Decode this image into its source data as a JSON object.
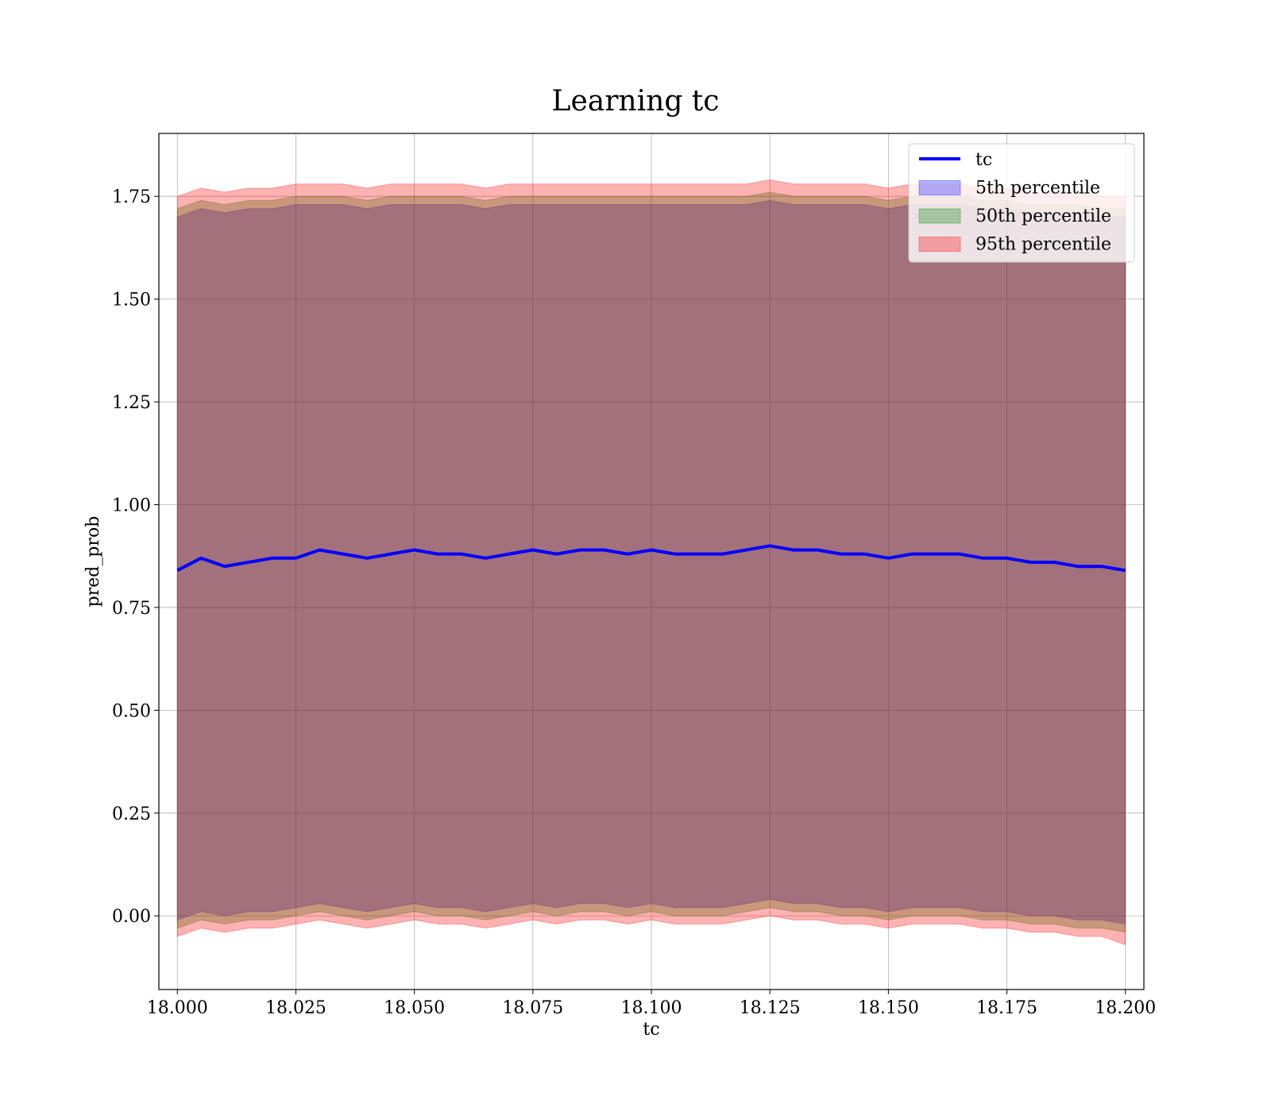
{
  "chart_data": {
    "type": "line",
    "title": "Learning tc",
    "xlabel": "tc",
    "ylabel": "pred_prob",
    "xlim": [
      17.9961,
      18.2039
    ],
    "ylim": [
      -0.1792,
      1.903
    ],
    "xticks": [
      18.0,
      18.025,
      18.05,
      18.075,
      18.1,
      18.125,
      18.15,
      18.175,
      18.2
    ],
    "xtick_labels": [
      "18.000",
      "18.025",
      "18.050",
      "18.075",
      "18.100",
      "18.125",
      "18.150",
      "18.175",
      "18.200"
    ],
    "yticks": [
      0.0,
      0.25,
      0.5,
      0.75,
      1.0,
      1.25,
      1.5,
      1.75
    ],
    "ytick_labels": [
      "0.00",
      "0.25",
      "0.50",
      "0.75",
      "1.00",
      "1.25",
      "1.50",
      "1.75"
    ],
    "grid": true,
    "legend_position": "top-right",
    "x": [
      18.0,
      18.005,
      18.01,
      18.015,
      18.02,
      18.025,
      18.03,
      18.035,
      18.04,
      18.045,
      18.05,
      18.055,
      18.06,
      18.065,
      18.07,
      18.075,
      18.08,
      18.085,
      18.09,
      18.095,
      18.1,
      18.105,
      18.11,
      18.115,
      18.12,
      18.125,
      18.13,
      18.135,
      18.14,
      18.145,
      18.15,
      18.155,
      18.16,
      18.165,
      18.17,
      18.175,
      18.18,
      18.185,
      18.19,
      18.195,
      18.2
    ],
    "series": [
      {
        "name": "tc",
        "kind": "line",
        "color": "#0000ff",
        "values": [
          0.84,
          0.87,
          0.85,
          0.86,
          0.87,
          0.87,
          0.89,
          0.88,
          0.87,
          0.88,
          0.89,
          0.88,
          0.88,
          0.87,
          0.88,
          0.89,
          0.88,
          0.89,
          0.89,
          0.88,
          0.89,
          0.88,
          0.88,
          0.88,
          0.89,
          0.9,
          0.89,
          0.89,
          0.88,
          0.88,
          0.87,
          0.88,
          0.88,
          0.88,
          0.87,
          0.87,
          0.86,
          0.86,
          0.85,
          0.85,
          0.84
        ]
      },
      {
        "name": "5th percentile",
        "kind": "band",
        "color": "#0000ff",
        "lower": [
          -0.01,
          0.01,
          0.0,
          0.01,
          0.01,
          0.02,
          0.03,
          0.02,
          0.01,
          0.02,
          0.03,
          0.02,
          0.02,
          0.01,
          0.02,
          0.03,
          0.02,
          0.03,
          0.03,
          0.02,
          0.03,
          0.02,
          0.02,
          0.02,
          0.03,
          0.04,
          0.03,
          0.03,
          0.02,
          0.02,
          0.01,
          0.02,
          0.02,
          0.02,
          0.01,
          0.01,
          0.0,
          0.0,
          -0.01,
          -0.01,
          -0.02
        ],
        "upper": [
          1.7,
          1.72,
          1.71,
          1.72,
          1.72,
          1.73,
          1.73,
          1.73,
          1.72,
          1.73,
          1.73,
          1.73,
          1.73,
          1.72,
          1.73,
          1.73,
          1.73,
          1.73,
          1.73,
          1.73,
          1.73,
          1.73,
          1.73,
          1.73,
          1.73,
          1.74,
          1.73,
          1.73,
          1.73,
          1.73,
          1.72,
          1.73,
          1.73,
          1.73,
          1.72,
          1.72,
          1.71,
          1.71,
          1.71,
          1.7,
          1.7
        ]
      },
      {
        "name": "50th percentile",
        "kind": "band",
        "color": "#008000",
        "lower": [
          -0.03,
          -0.01,
          -0.02,
          -0.01,
          -0.01,
          0.0,
          0.01,
          0.0,
          -0.01,
          0.0,
          0.01,
          0.0,
          0.0,
          -0.01,
          0.0,
          0.01,
          0.0,
          0.01,
          0.01,
          0.0,
          0.01,
          0.0,
          0.0,
          0.0,
          0.01,
          0.02,
          0.01,
          0.01,
          0.0,
          0.0,
          -0.01,
          0.0,
          0.0,
          0.0,
          -0.01,
          -0.01,
          -0.02,
          -0.02,
          -0.03,
          -0.03,
          -0.04
        ],
        "upper": [
          1.72,
          1.74,
          1.73,
          1.74,
          1.74,
          1.75,
          1.75,
          1.75,
          1.74,
          1.75,
          1.75,
          1.75,
          1.75,
          1.74,
          1.75,
          1.75,
          1.75,
          1.75,
          1.75,
          1.75,
          1.75,
          1.75,
          1.75,
          1.75,
          1.75,
          1.76,
          1.75,
          1.75,
          1.75,
          1.75,
          1.74,
          1.75,
          1.75,
          1.75,
          1.74,
          1.74,
          1.73,
          1.73,
          1.73,
          1.72,
          1.72
        ]
      },
      {
        "name": "95th percentile",
        "kind": "band",
        "color": "#ff0000",
        "lower": [
          -0.05,
          -0.03,
          -0.04,
          -0.03,
          -0.03,
          -0.02,
          -0.01,
          -0.02,
          -0.03,
          -0.02,
          -0.01,
          -0.02,
          -0.02,
          -0.03,
          -0.02,
          -0.01,
          -0.02,
          -0.01,
          -0.01,
          -0.02,
          -0.01,
          -0.02,
          -0.02,
          -0.02,
          -0.01,
          0.0,
          -0.01,
          -0.01,
          -0.02,
          -0.02,
          -0.03,
          -0.02,
          -0.02,
          -0.02,
          -0.03,
          -0.03,
          -0.04,
          -0.04,
          -0.05,
          -0.05,
          -0.07
        ],
        "upper": [
          1.75,
          1.77,
          1.76,
          1.77,
          1.77,
          1.78,
          1.78,
          1.78,
          1.77,
          1.78,
          1.78,
          1.78,
          1.78,
          1.77,
          1.78,
          1.78,
          1.78,
          1.78,
          1.78,
          1.78,
          1.78,
          1.78,
          1.78,
          1.78,
          1.78,
          1.79,
          1.78,
          1.78,
          1.78,
          1.78,
          1.77,
          1.78,
          1.78,
          1.78,
          1.77,
          1.77,
          1.76,
          1.76,
          1.76,
          1.75,
          1.75
        ]
      }
    ]
  }
}
